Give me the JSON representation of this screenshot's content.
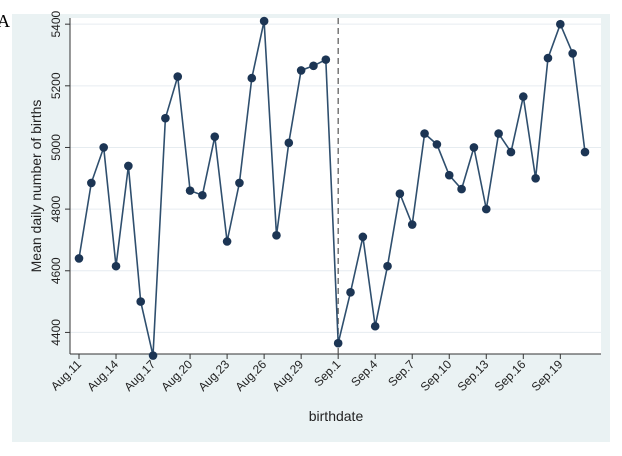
{
  "panel_label": "A",
  "chart_data": {
    "type": "line",
    "title": "",
    "xlabel": "birthdate",
    "ylabel": "Mean daily number of births",
    "ylim": [
      4330,
      5420
    ],
    "yticks": [
      4400,
      4600,
      4800,
      5000,
      5200,
      5400
    ],
    "x": [
      "Aug.11",
      "Aug.12",
      "Aug.13",
      "Aug.14",
      "Aug.15",
      "Aug.16",
      "Aug.17",
      "Aug.18",
      "Aug.19",
      "Aug.20",
      "Aug.21",
      "Aug.22",
      "Aug.23",
      "Aug.24",
      "Aug.25",
      "Aug.26",
      "Aug.27",
      "Aug.28",
      "Aug.29",
      "Aug.30",
      "Aug.31",
      "Sep.1",
      "Sep.2",
      "Sep.3",
      "Sep.4",
      "Sep.5",
      "Sep.6",
      "Sep.7",
      "Sep.8",
      "Sep.9",
      "Sep.10",
      "Sep.11",
      "Sep.12",
      "Sep.13",
      "Sep.14",
      "Sep.15",
      "Sep.16",
      "Sep.17",
      "Sep.18",
      "Sep.19",
      "Sep.20",
      "Sep.21"
    ],
    "xtick_labels": [
      "Aug.11",
      "Aug.14",
      "Aug.17",
      "Aug.20",
      "Aug.23",
      "Aug.26",
      "Aug.29",
      "Sep.1",
      "Sep.4",
      "Sep.7",
      "Sep.10",
      "Sep.13",
      "Sep.16",
      "Sep.19"
    ],
    "series": [
      {
        "values": [
          4640,
          4885,
          5000,
          4615,
          4940,
          4500,
          4325,
          5095,
          5230,
          4860,
          4845,
          5035,
          4695,
          4885,
          5225,
          5410,
          4715,
          5015,
          5250,
          5265,
          5285,
          4365,
          4530,
          4710,
          4420,
          4615,
          4850,
          4750,
          5045,
          5010,
          4910,
          4865,
          5000,
          4800,
          5045,
          4985,
          5165,
          4900,
          5290,
          5400,
          5305,
          4985
        ]
      }
    ],
    "vline": {
      "x": "Sep.1",
      "style": "dashed"
    },
    "grid": true,
    "colors": {
      "line": "#2f4f6e",
      "marker": "#1c3554",
      "grid": "#e6ecf0",
      "background": "#eaf2f3",
      "vline": "#555555"
    }
  }
}
